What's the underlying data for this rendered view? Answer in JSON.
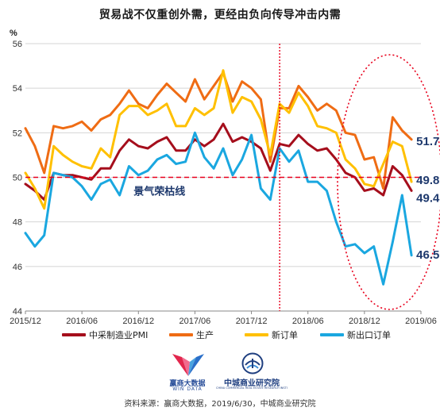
{
  "title": "贸易战不仅重创外需，更经由负向传导冲击内需",
  "chart_data": {
    "type": "line",
    "y_unit": "%",
    "ylim": [
      44,
      56
    ],
    "y_ticks": [
      44,
      46,
      48,
      50,
      52,
      54,
      56
    ],
    "x_start": "2015-12",
    "x_end": "2019-06",
    "x_tick_labels": [
      "2015/12",
      "2016/06",
      "2016/12",
      "2017/06",
      "2017/12",
      "2018/06",
      "2018/12",
      "2019/06"
    ],
    "grid": "horizontal",
    "reference_line": {
      "y": 50,
      "label": "景气荣枯线",
      "color": "#e8001c"
    },
    "vertical_marker": {
      "x": "2018-03",
      "color": "#e8001c"
    },
    "highlight_ellipse": {
      "x_from": "2018-11",
      "x_to": "2019-06",
      "color": "#e8001c"
    },
    "series": [
      {
        "name": "中采制造业PMI",
        "color": "#a50e1c",
        "end_label": "49.4",
        "points": [
          [
            "2015-12",
            49.7
          ],
          [
            "2016-01",
            49.4
          ],
          [
            "2016-02",
            49.0
          ],
          [
            "2016-03",
            50.2
          ],
          [
            "2016-04",
            50.1
          ],
          [
            "2016-05",
            50.1
          ],
          [
            "2016-06",
            50.0
          ],
          [
            "2016-07",
            49.9
          ],
          [
            "2016-08",
            50.4
          ],
          [
            "2016-09",
            50.4
          ],
          [
            "2016-10",
            51.2
          ],
          [
            "2016-11",
            51.7
          ],
          [
            "2016-12",
            51.4
          ],
          [
            "2017-01",
            51.3
          ],
          [
            "2017-02",
            51.6
          ],
          [
            "2017-03",
            51.8
          ],
          [
            "2017-04",
            51.2
          ],
          [
            "2017-05",
            51.2
          ],
          [
            "2017-06",
            51.7
          ],
          [
            "2017-07",
            51.4
          ],
          [
            "2017-08",
            51.7
          ],
          [
            "2017-09",
            52.4
          ],
          [
            "2017-10",
            51.6
          ],
          [
            "2017-11",
            51.8
          ],
          [
            "2017-12",
            51.6
          ],
          [
            "2018-01",
            51.3
          ],
          [
            "2018-02",
            50.3
          ],
          [
            "2018-03",
            51.5
          ],
          [
            "2018-04",
            51.4
          ],
          [
            "2018-05",
            51.9
          ],
          [
            "2018-06",
            51.5
          ],
          [
            "2018-07",
            51.2
          ],
          [
            "2018-08",
            51.3
          ],
          [
            "2018-09",
            50.8
          ],
          [
            "2018-10",
            50.2
          ],
          [
            "2018-11",
            50.0
          ],
          [
            "2018-12",
            49.4
          ],
          [
            "2019-01",
            49.5
          ],
          [
            "2019-02",
            49.2
          ],
          [
            "2019-03",
            50.5
          ],
          [
            "2019-04",
            50.1
          ],
          [
            "2019-05",
            49.4
          ]
        ]
      },
      {
        "name": "生产",
        "color": "#ef6c14",
        "end_label": "51.7",
        "points": [
          [
            "2015-12",
            52.2
          ],
          [
            "2016-01",
            51.4
          ],
          [
            "2016-02",
            50.2
          ],
          [
            "2016-03",
            52.3
          ],
          [
            "2016-04",
            52.2
          ],
          [
            "2016-05",
            52.3
          ],
          [
            "2016-06",
            52.5
          ],
          [
            "2016-07",
            52.1
          ],
          [
            "2016-08",
            52.6
          ],
          [
            "2016-09",
            52.8
          ],
          [
            "2016-10",
            53.3
          ],
          [
            "2016-11",
            53.9
          ],
          [
            "2016-12",
            53.3
          ],
          [
            "2017-01",
            53.1
          ],
          [
            "2017-02",
            53.7
          ],
          [
            "2017-03",
            54.2
          ],
          [
            "2017-04",
            53.8
          ],
          [
            "2017-05",
            53.4
          ],
          [
            "2017-06",
            54.4
          ],
          [
            "2017-07",
            53.5
          ],
          [
            "2017-08",
            54.1
          ],
          [
            "2017-09",
            54.7
          ],
          [
            "2017-10",
            53.4
          ],
          [
            "2017-11",
            54.3
          ],
          [
            "2017-12",
            54.0
          ],
          [
            "2018-01",
            53.5
          ],
          [
            "2018-02",
            50.7
          ],
          [
            "2018-03",
            53.1
          ],
          [
            "2018-04",
            53.1
          ],
          [
            "2018-05",
            54.1
          ],
          [
            "2018-06",
            53.6
          ],
          [
            "2018-07",
            53.0
          ],
          [
            "2018-08",
            53.3
          ],
          [
            "2018-09",
            53.0
          ],
          [
            "2018-10",
            52.0
          ],
          [
            "2018-11",
            51.9
          ],
          [
            "2018-12",
            50.8
          ],
          [
            "2019-01",
            50.9
          ],
          [
            "2019-02",
            49.5
          ],
          [
            "2019-03",
            52.7
          ],
          [
            "2019-04",
            52.1
          ],
          [
            "2019-05",
            51.7
          ]
        ]
      },
      {
        "name": "新订单",
        "color": "#ffc000",
        "end_label": "49.8",
        "points": [
          [
            "2015-12",
            50.2
          ],
          [
            "2016-01",
            49.5
          ],
          [
            "2016-02",
            48.6
          ],
          [
            "2016-03",
            51.4
          ],
          [
            "2016-04",
            51.0
          ],
          [
            "2016-05",
            50.7
          ],
          [
            "2016-06",
            50.5
          ],
          [
            "2016-07",
            50.4
          ],
          [
            "2016-08",
            51.3
          ],
          [
            "2016-09",
            50.9
          ],
          [
            "2016-10",
            52.8
          ],
          [
            "2016-11",
            53.2
          ],
          [
            "2016-12",
            53.2
          ],
          [
            "2017-01",
            52.8
          ],
          [
            "2017-02",
            53.0
          ],
          [
            "2017-03",
            53.3
          ],
          [
            "2017-04",
            52.3
          ],
          [
            "2017-05",
            52.3
          ],
          [
            "2017-06",
            53.1
          ],
          [
            "2017-07",
            52.8
          ],
          [
            "2017-08",
            53.1
          ],
          [
            "2017-09",
            54.8
          ],
          [
            "2017-10",
            52.9
          ],
          [
            "2017-11",
            53.6
          ],
          [
            "2017-12",
            53.4
          ],
          [
            "2018-01",
            52.6
          ],
          [
            "2018-02",
            51.0
          ],
          [
            "2018-03",
            53.3
          ],
          [
            "2018-04",
            52.9
          ],
          [
            "2018-05",
            53.8
          ],
          [
            "2018-06",
            53.2
          ],
          [
            "2018-07",
            52.3
          ],
          [
            "2018-08",
            52.2
          ],
          [
            "2018-09",
            52.0
          ],
          [
            "2018-10",
            50.8
          ],
          [
            "2018-11",
            50.4
          ],
          [
            "2018-12",
            49.7
          ],
          [
            "2019-01",
            49.6
          ],
          [
            "2019-02",
            50.6
          ],
          [
            "2019-03",
            51.6
          ],
          [
            "2019-04",
            51.4
          ],
          [
            "2019-05",
            49.8
          ]
        ]
      },
      {
        "name": "新出口订单",
        "color": "#1aa7e0",
        "end_label": "46.5",
        "points": [
          [
            "2015-12",
            47.5
          ],
          [
            "2016-01",
            46.9
          ],
          [
            "2016-02",
            47.4
          ],
          [
            "2016-03",
            50.2
          ],
          [
            "2016-04",
            50.1
          ],
          [
            "2016-05",
            50.0
          ],
          [
            "2016-06",
            49.6
          ],
          [
            "2016-07",
            49.0
          ],
          [
            "2016-08",
            49.7
          ],
          [
            "2016-09",
            49.9
          ],
          [
            "2016-10",
            49.2
          ],
          [
            "2016-11",
            50.5
          ],
          [
            "2016-12",
            50.1
          ],
          [
            "2017-01",
            50.3
          ],
          [
            "2017-02",
            50.8
          ],
          [
            "2017-03",
            51.0
          ],
          [
            "2017-04",
            50.6
          ],
          [
            "2017-05",
            50.7
          ],
          [
            "2017-06",
            52.0
          ],
          [
            "2017-07",
            50.9
          ],
          [
            "2017-08",
            50.4
          ],
          [
            "2017-09",
            51.3
          ],
          [
            "2017-10",
            50.1
          ],
          [
            "2017-11",
            50.8
          ],
          [
            "2017-12",
            51.9
          ],
          [
            "2018-01",
            49.5
          ],
          [
            "2018-02",
            49.0
          ],
          [
            "2018-03",
            51.3
          ],
          [
            "2018-04",
            50.7
          ],
          [
            "2018-05",
            51.2
          ],
          [
            "2018-06",
            49.8
          ],
          [
            "2018-07",
            49.8
          ],
          [
            "2018-08",
            49.4
          ],
          [
            "2018-09",
            48.0
          ],
          [
            "2018-10",
            46.9
          ],
          [
            "2018-11",
            47.0
          ],
          [
            "2018-12",
            46.6
          ],
          [
            "2019-01",
            46.9
          ],
          [
            "2019-02",
            45.2
          ],
          [
            "2019-03",
            47.1
          ],
          [
            "2019-04",
            49.2
          ],
          [
            "2019-05",
            46.5
          ]
        ]
      }
    ]
  },
  "logos": {
    "left_name": "赢商大数据",
    "left_sub": "WIN DATA",
    "right_name": "中城商业研究院",
    "right_sub": "CHINA COMMERCIAL REAL ESTATE RESEARCH INSTITUTE"
  },
  "source": "资料来源：赢商大数据，2019/6/30，中城商业研究院"
}
